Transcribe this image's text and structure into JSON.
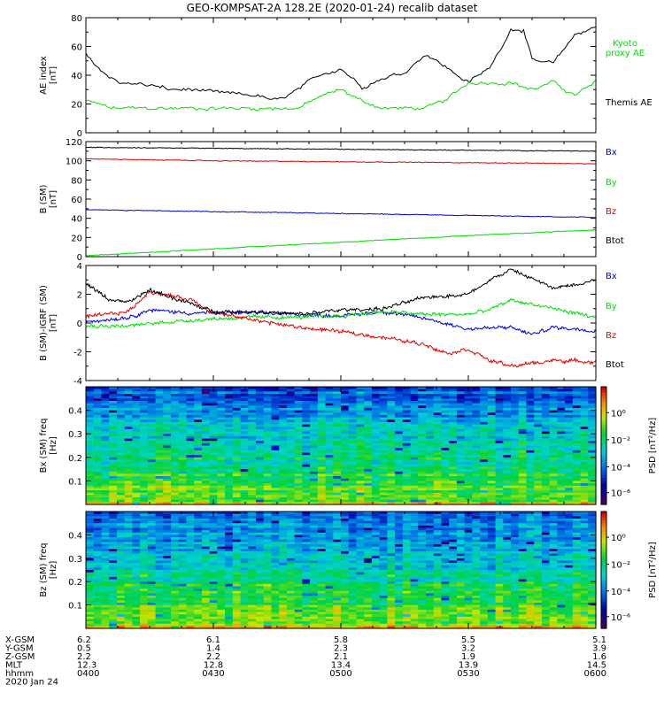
{
  "title": "GEO-KOMPSAT-2A 128.2E (2020-01-24) recalib dataset",
  "colors": {
    "black": "#000000",
    "red": "#e00000",
    "blue": "#0000d8",
    "green": "#00dd00"
  },
  "chart_data": [
    {
      "type": "line",
      "ylabel": "AE index [nT]",
      "ylim": [
        0,
        80
      ],
      "yticks": [
        "0",
        "20",
        "40",
        "60",
        "80"
      ],
      "xlim": [
        "04:00",
        "06:00"
      ],
      "series": [
        {
          "name": "Kyoto proxy AE",
          "color": "#00dd00",
          "x": [
            "04:00",
            "04:03",
            "04:06",
            "04:10",
            "04:20",
            "04:40",
            "04:50",
            "04:55",
            "05:00",
            "05:05",
            "05:10",
            "05:20",
            "05:25",
            "05:30",
            "05:40",
            "05:45",
            "05:50",
            "05:55",
            "06:00"
          ],
          "y": [
            22,
            20,
            17,
            17,
            17,
            17,
            17,
            25,
            30,
            22,
            17,
            17,
            23,
            35,
            35,
            30,
            35,
            26,
            35
          ]
        },
        {
          "name": "Themis AE",
          "color": "#000000",
          "x": [
            "04:00",
            "04:03",
            "04:05",
            "04:08",
            "04:15",
            "04:20",
            "04:25",
            "04:30",
            "04:40",
            "04:45",
            "04:50",
            "04:55",
            "05:00",
            "05:05",
            "05:10",
            "05:15",
            "05:20",
            "05:25",
            "05:30",
            "05:35",
            "05:40",
            "05:43",
            "05:45",
            "05:50",
            "05:55",
            "06:00"
          ],
          "y": [
            55,
            45,
            40,
            35,
            33,
            30,
            30,
            28,
            26,
            22,
            30,
            40,
            45,
            32,
            38,
            42,
            55,
            45,
            35,
            45,
            72,
            72,
            50,
            48,
            68,
            74
          ]
        }
      ]
    },
    {
      "type": "line",
      "ylabel": "B (SM) [nT]",
      "ylim": [
        0,
        120
      ],
      "yticks": [
        "0",
        "20",
        "40",
        "60",
        "80",
        "100",
        "120"
      ],
      "xlim": [
        "04:00",
        "06:00"
      ],
      "series": [
        {
          "name": "Bx",
          "color": "#0000d8",
          "x": [
            "04:00",
            "04:30",
            "05:00",
            "05:30",
            "06:00"
          ],
          "y": [
            49,
            47,
            45,
            43,
            41
          ]
        },
        {
          "name": "By",
          "color": "#00dd00",
          "x": [
            "04:00",
            "04:30",
            "05:00",
            "05:30",
            "06:00"
          ],
          "y": [
            1,
            8,
            15,
            22,
            28
          ]
        },
        {
          "name": "Bz",
          "color": "#e00000",
          "x": [
            "04:00",
            "04:30",
            "05:00",
            "05:30",
            "06:00"
          ],
          "y": [
            102,
            100,
            99,
            98,
            97
          ]
        },
        {
          "name": "Btot",
          "color": "#000000",
          "x": [
            "04:00",
            "04:30",
            "05:00",
            "05:30",
            "06:00"
          ],
          "y": [
            114,
            113,
            112,
            111,
            110
          ]
        }
      ]
    },
    {
      "type": "line",
      "ylabel": "B (SM)-IGRF (SM) [nT]",
      "ylim": [
        -4,
        4
      ],
      "yticks": [
        "-4",
        "-2",
        "0",
        "2",
        "4"
      ],
      "xlim": [
        "04:00",
        "06:00"
      ],
      "series": [
        {
          "name": "Bx",
          "color": "#0000d8",
          "x": [
            "04:00",
            "04:10",
            "04:15",
            "04:25",
            "04:30",
            "04:40",
            "04:50",
            "05:00",
            "05:10",
            "05:20",
            "05:30",
            "05:40",
            "05:45",
            "05:50",
            "06:00"
          ],
          "y": [
            0.1,
            0.4,
            0.9,
            0.7,
            0.7,
            0.7,
            0.6,
            0.5,
            0.8,
            0.3,
            -0.4,
            -0.3,
            -0.8,
            -0.3,
            -0.5
          ]
        },
        {
          "name": "By",
          "color": "#00dd00",
          "x": [
            "04:00",
            "04:10",
            "04:20",
            "04:30",
            "04:40",
            "04:50",
            "05:00",
            "05:10",
            "05:20",
            "05:30",
            "05:35",
            "05:40",
            "05:45",
            "05:50",
            "06:00"
          ],
          "y": [
            -0.2,
            -0.2,
            0.1,
            0.3,
            0.4,
            0.4,
            0.5,
            0.8,
            0.6,
            0.6,
            0.9,
            1.6,
            1.3,
            1.0,
            0.4
          ]
        },
        {
          "name": "Bz",
          "color": "#e00000",
          "x": [
            "04:00",
            "04:10",
            "04:15",
            "04:25",
            "04:30",
            "04:40",
            "04:50",
            "05:00",
            "05:10",
            "05:20",
            "05:25",
            "05:30",
            "05:35",
            "05:40",
            "05:45",
            "05:50",
            "06:00"
          ],
          "y": [
            0.4,
            0.8,
            2.2,
            1.6,
            0.7,
            0.2,
            -0.3,
            -0.6,
            -1.0,
            -1.5,
            -2.1,
            -1.8,
            -2.6,
            -3.0,
            -2.8,
            -2.6,
            -2.7
          ]
        },
        {
          "name": "Btot",
          "color": "#000000",
          "x": [
            "04:00",
            "04:05",
            "04:10",
            "04:15",
            "04:25",
            "04:30",
            "04:40",
            "04:50",
            "05:00",
            "05:10",
            "05:20",
            "05:30",
            "05:35",
            "05:40",
            "05:45",
            "05:50",
            "06:00"
          ],
          "y": [
            2.8,
            1.7,
            1.4,
            2.3,
            1.3,
            0.8,
            0.8,
            0.6,
            0.9,
            1.0,
            1.8,
            2.0,
            3.0,
            3.7,
            3.1,
            2.4,
            3.0
          ]
        }
      ]
    },
    {
      "type": "heatmap",
      "ylabel": "Bx (SM) freq [Hz]",
      "ylim": [
        0,
        0.5
      ],
      "yticks": [
        "0.1",
        "0.2",
        "0.3",
        "0.4"
      ],
      "colorbar_label": "PSD [nT²/Hz]",
      "colorbar_ticks": [
        "10⁰",
        "10⁻²",
        "10⁻⁴",
        "10⁻⁶"
      ]
    },
    {
      "type": "heatmap",
      "ylabel": "Bz (SM) freq [Hz]",
      "ylim": [
        0,
        0.5
      ],
      "yticks": [
        "0.1",
        "0.2",
        "0.3",
        "0.4"
      ],
      "colorbar_label": "PSD [nT²/Hz]",
      "colorbar_ticks": [
        "10⁰",
        "10⁻²",
        "10⁻⁴",
        "10⁻⁶"
      ]
    }
  ],
  "footer": {
    "labels": [
      "X-GSM",
      "Y-GSM",
      "Z-GSM",
      "MLT",
      "hhmm",
      "2020 Jan 24"
    ],
    "columns": [
      [
        "6.2",
        "0.5",
        "2.2",
        "12.3",
        "0400"
      ],
      [
        "6.1",
        "1.4",
        "2.2",
        "12.8",
        "0430"
      ],
      [
        "5.8",
        "2.3",
        "2.1",
        "13.4",
        "0500"
      ],
      [
        "5.5",
        "3.2",
        "1.9",
        "13.9",
        "0530"
      ],
      [
        "5.1",
        "3.9",
        "1.6",
        "14.5",
        "0600"
      ]
    ]
  }
}
